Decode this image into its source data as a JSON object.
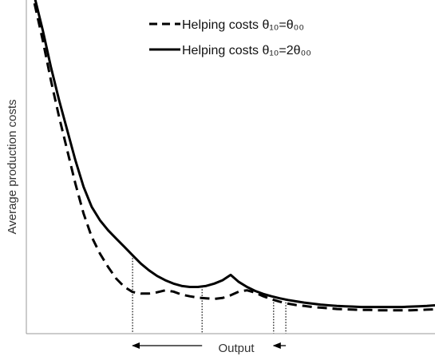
{
  "chart_data": {
    "type": "line",
    "title": "",
    "xlabel": "Output",
    "ylabel": "Average production costs",
    "xticks": "none",
    "yticks": "none",
    "grid": false,
    "legend_position": "top-right",
    "xlim": [
      0,
      100
    ],
    "ylim": [
      0,
      100
    ],
    "series": [
      {
        "name": "Helping costs θ₁₀=θ₀₀",
        "line_style": "dashed",
        "color": "#000000",
        "x": [
          2,
          4,
          6,
          8,
          10,
          12,
          14,
          16,
          18,
          20,
          22,
          24,
          26,
          28,
          30,
          32,
          34,
          36,
          38,
          40,
          42,
          44,
          46,
          48,
          50,
          52,
          54,
          56,
          58,
          60,
          62,
          64,
          66,
          68,
          70,
          72,
          74,
          76,
          78,
          80,
          82,
          84,
          86,
          88,
          90,
          92,
          94,
          96,
          98,
          100
        ],
        "y": [
          99,
          88,
          76,
          65,
          55,
          45,
          36,
          29,
          24,
          20,
          16.5,
          14,
          12.5,
          12,
          12,
          12.4,
          13,
          12.6,
          11.7,
          11.2,
          10.8,
          10.6,
          10.4,
          10.7,
          11.5,
          12.6,
          13,
          12.3,
          11.2,
          10.3,
          9.6,
          9,
          8.6,
          8.3,
          8,
          7.8,
          7.6,
          7.4,
          7.3,
          7.2,
          7.1,
          7.1,
          7,
          7,
          7,
          7,
          7,
          7.1,
          7.2,
          7.3
        ]
      },
      {
        "name": "Helping costs θ₁₀=2θ₀₀",
        "line_style": "solid",
        "color": "#000000",
        "x": [
          2,
          4,
          6,
          8,
          10,
          12,
          14,
          16,
          18,
          20,
          22,
          24,
          26,
          28,
          30,
          32,
          34,
          36,
          38,
          40,
          42,
          44,
          46,
          48,
          50,
          52,
          54,
          56,
          58,
          60,
          62,
          64,
          66,
          68,
          70,
          72,
          74,
          76,
          78,
          80,
          82,
          84,
          86,
          88,
          90,
          92,
          94,
          96,
          98,
          100
        ],
        "y": [
          101,
          91,
          80,
          70,
          61,
          52,
          44,
          38,
          34,
          31,
          28.5,
          26,
          23.5,
          21,
          19,
          17.3,
          16,
          15,
          14.3,
          14,
          14,
          14.3,
          15,
          16,
          17.6,
          15.5,
          14,
          12.8,
          11.9,
          11.2,
          10.6,
          10.1,
          9.7,
          9.3,
          9,
          8.7,
          8.5,
          8.3,
          8.2,
          8.1,
          8,
          8,
          8,
          8,
          8,
          8,
          8.1,
          8.2,
          8.3,
          8.5
        ]
      }
    ],
    "reference_lines": {
      "style": "dotted",
      "x": [
        26,
        43,
        60.5,
        63.5
      ]
    },
    "annotations": [
      {
        "type": "arrow",
        "from_x": 43,
        "to_x": 26,
        "text": ""
      },
      {
        "type": "arrow",
        "from_x": 63.5,
        "to_x": 60.5,
        "text": ""
      }
    ]
  }
}
